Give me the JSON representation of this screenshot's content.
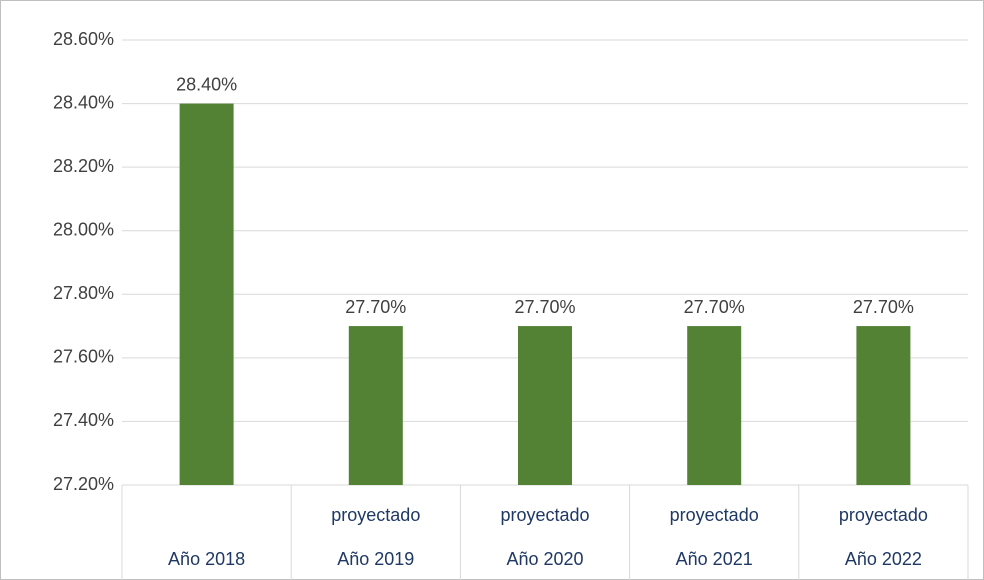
{
  "chart_data": {
    "type": "bar",
    "categories": [
      "Año 2018",
      "Año 2019",
      "Año 2020",
      "Año 2021",
      "Año 2022"
    ],
    "category_groups": [
      null,
      "proyectado",
      "proyectado",
      "proyectado",
      "proyectado"
    ],
    "values": [
      28.4,
      27.7,
      27.7,
      27.7,
      27.7
    ],
    "value_labels": [
      "28.40%",
      "27.70%",
      "27.70%",
      "27.70%",
      "27.70%"
    ],
    "color": "#548235",
    "ylim": [
      27.2,
      28.6
    ],
    "yticks": [
      {
        "value": 27.2,
        "label": "27.20%"
      },
      {
        "value": 27.4,
        "label": "27.40%"
      },
      {
        "value": 27.6,
        "label": "27.60%"
      },
      {
        "value": 27.8,
        "label": "27.80%"
      },
      {
        "value": 28.0,
        "label": "28.00%"
      },
      {
        "value": 28.2,
        "label": "28.20%"
      },
      {
        "value": 28.4,
        "label": "28.40%"
      },
      {
        "value": 28.6,
        "label": "28.60%"
      }
    ],
    "grid": true
  }
}
